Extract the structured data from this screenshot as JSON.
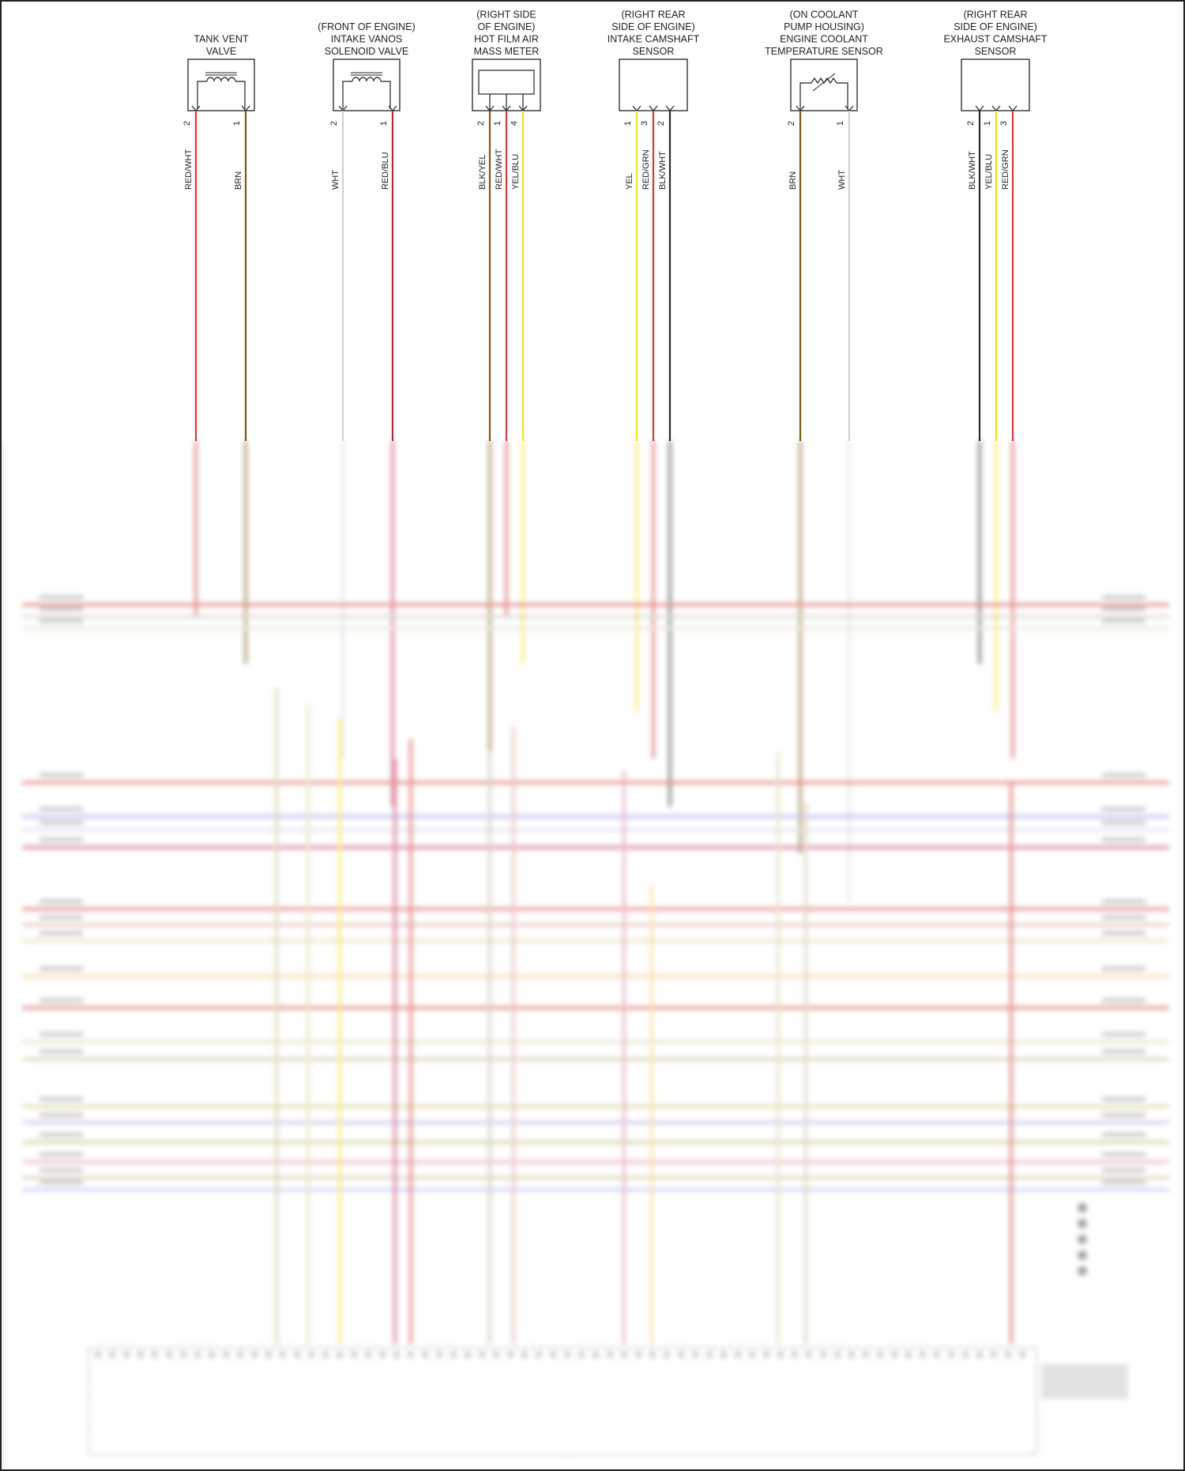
{
  "colors": {
    "red": "#d23a3a",
    "brown": "#7a5a12",
    "white": "#d8d8d8",
    "yellow": "#f2e227",
    "black": "#2a2a2a",
    "red_blue_stripe": "#c0305c",
    "frame": "#222222"
  },
  "components": [
    {
      "id": "tank-vent-valve",
      "label_lines": [
        "TANK VENT",
        "VALVE"
      ],
      "symbol": "solenoid",
      "pins": [
        {
          "num": "2",
          "wire": "RED/WHT",
          "color": "red"
        },
        {
          "num": "1",
          "wire": "BRN",
          "color": "brown"
        }
      ]
    },
    {
      "id": "intake-vanos-solenoid-valve",
      "label_lines": [
        "(FRONT OF ENGINE)",
        "INTAKE VANOS",
        "SOLENOID VALVE"
      ],
      "symbol": "solenoid",
      "pins": [
        {
          "num": "2",
          "wire": "WHT",
          "color": "white"
        },
        {
          "num": "1",
          "wire": "RED/BLU",
          "color": "red_blue_stripe"
        }
      ]
    },
    {
      "id": "hot-film-air-mass-meter",
      "label_lines": [
        "(RIGHT SIDE",
        "OF ENGINE)",
        "HOT FILM AIR",
        "MASS METER"
      ],
      "symbol": "box",
      "pins": [
        {
          "num": "2",
          "wire": "BLK/YEL",
          "color": "brown"
        },
        {
          "num": "1",
          "wire": "RED/WHT",
          "color": "red"
        },
        {
          "num": "4",
          "wire": "YEL/BLU",
          "color": "yellow"
        }
      ]
    },
    {
      "id": "intake-camshaft-sensor",
      "label_lines": [
        "(RIGHT REAR",
        "SIDE OF ENGINE)",
        "INTAKE CAMSHAFT",
        "SENSOR"
      ],
      "symbol": "plain",
      "pins": [
        {
          "num": "1",
          "wire": "YEL",
          "color": "yellow"
        },
        {
          "num": "3",
          "wire": "RED/GRN",
          "color": "red"
        },
        {
          "num": "2",
          "wire": "BLK/WHT",
          "color": "black"
        }
      ]
    },
    {
      "id": "engine-coolant-temperature-sensor",
      "label_lines": [
        "(ON COOLANT",
        "PUMP HOUSING)",
        "ENGINE COOLANT",
        "TEMPERATURE SENSOR"
      ],
      "symbol": "thermistor",
      "pins": [
        {
          "num": "2",
          "wire": "BRN",
          "color": "brown"
        },
        {
          "num": "1",
          "wire": "WHT",
          "color": "white"
        }
      ]
    },
    {
      "id": "exhaust-camshaft-sensor",
      "label_lines": [
        "(RIGHT REAR",
        "SIDE OF ENGINE)",
        "EXHAUST CAMSHAFT",
        "SENSOR"
      ],
      "symbol": "plain",
      "pins": [
        {
          "num": "2",
          "wire": "BLK/WHT",
          "color": "black"
        },
        {
          "num": "1",
          "wire": "YEL/BLU",
          "color": "yellow"
        },
        {
          "num": "3",
          "wire": "RED/GRN",
          "color": "red"
        }
      ]
    }
  ]
}
